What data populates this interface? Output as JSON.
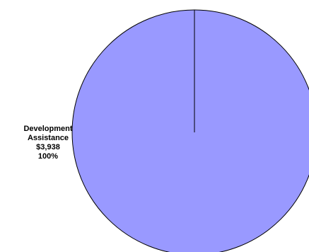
{
  "chart_data": {
    "type": "pie",
    "slices": [
      {
        "label_lines": [
          "Development",
          "Assistance"
        ],
        "value": 3938,
        "value_label": "$3,938",
        "percent_label": "100%",
        "color": "#9999FF"
      }
    ]
  },
  "colors": {
    "slice_fill": "#9999FF",
    "outline": "#000000",
    "background": "#FFFFFF"
  }
}
